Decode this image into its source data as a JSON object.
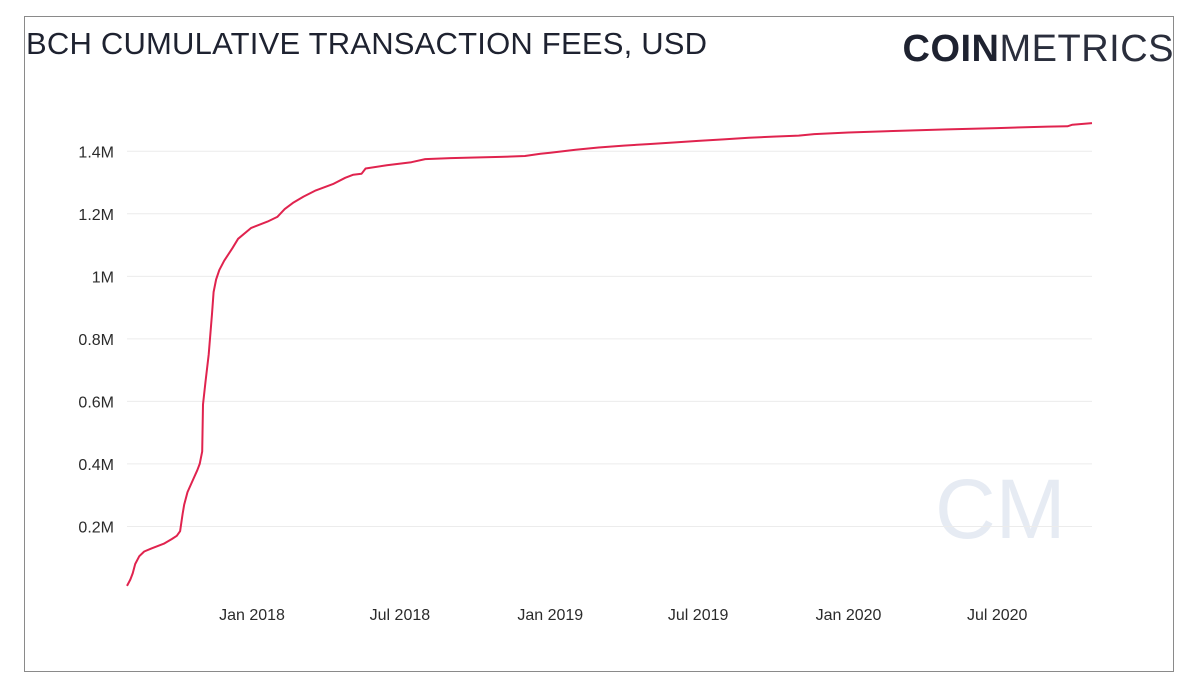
{
  "header": {
    "title": "BCH CUMULATIVE TRANSACTION FEES, USD",
    "brand_bold": "COIN",
    "brand_light": "METRICS"
  },
  "watermark": "CM",
  "colors": {
    "line": "#e0234e",
    "grid": "#ececec",
    "text": "#1e2230"
  },
  "chart_data": {
    "type": "line",
    "title": "BCH CUMULATIVE TRANSACTION FEES, USD",
    "xlabel": "",
    "ylabel": "",
    "xlim": [
      "2017-08-01",
      "2020-10-25"
    ],
    "ylim": [
      0,
      1500000
    ],
    "grid": true,
    "legend": "none",
    "x_ticks": [
      {
        "date": "2018-01-01",
        "label": "Jan 2018"
      },
      {
        "date": "2018-07-01",
        "label": "Jul 2018"
      },
      {
        "date": "2019-01-01",
        "label": "Jan 2019"
      },
      {
        "date": "2019-07-01",
        "label": "Jul 2019"
      },
      {
        "date": "2020-01-01",
        "label": "Jan 2020"
      },
      {
        "date": "2020-07-01",
        "label": "Jul 2020"
      }
    ],
    "y_ticks": [
      {
        "value": 200000,
        "label": "0.2M"
      },
      {
        "value": 400000,
        "label": "0.4M"
      },
      {
        "value": 600000,
        "label": "0.6M"
      },
      {
        "value": 800000,
        "label": "0.8M"
      },
      {
        "value": 1000000,
        "label": "1M"
      },
      {
        "value": 1200000,
        "label": "1.2M"
      },
      {
        "value": 1400000,
        "label": "1.4M"
      }
    ],
    "series": [
      {
        "points": [
          [
            "2017-08-01",
            10000
          ],
          [
            "2017-08-05",
            30000
          ],
          [
            "2017-08-08",
            50000
          ],
          [
            "2017-08-11",
            80000
          ],
          [
            "2017-08-16",
            105000
          ],
          [
            "2017-08-22",
            120000
          ],
          [
            "2017-08-31",
            130000
          ],
          [
            "2017-09-15",
            145000
          ],
          [
            "2017-09-25",
            160000
          ],
          [
            "2017-10-01",
            170000
          ],
          [
            "2017-10-05",
            185000
          ],
          [
            "2017-10-08",
            240000
          ],
          [
            "2017-10-10",
            270000
          ],
          [
            "2017-10-14",
            310000
          ],
          [
            "2017-10-20",
            345000
          ],
          [
            "2017-10-26",
            380000
          ],
          [
            "2017-10-29",
            400000
          ],
          [
            "2017-11-01",
            440000
          ],
          [
            "2017-11-02",
            590000
          ],
          [
            "2017-11-05",
            660000
          ],
          [
            "2017-11-09",
            750000
          ],
          [
            "2017-11-13",
            880000
          ],
          [
            "2017-11-15",
            950000
          ],
          [
            "2017-11-18",
            990000
          ],
          [
            "2017-11-22",
            1020000
          ],
          [
            "2017-11-28",
            1050000
          ],
          [
            "2017-12-08",
            1090000
          ],
          [
            "2017-12-15",
            1120000
          ],
          [
            "2017-12-31",
            1155000
          ],
          [
            "2018-01-20",
            1175000
          ],
          [
            "2018-02-01",
            1190000
          ],
          [
            "2018-02-10",
            1215000
          ],
          [
            "2018-02-20",
            1235000
          ],
          [
            "2018-03-05",
            1255000
          ],
          [
            "2018-03-20",
            1275000
          ],
          [
            "2018-04-10",
            1295000
          ],
          [
            "2018-04-25",
            1315000
          ],
          [
            "2018-05-05",
            1325000
          ],
          [
            "2018-05-15",
            1328000
          ],
          [
            "2018-05-20",
            1345000
          ],
          [
            "2018-06-15",
            1355000
          ],
          [
            "2018-07-15",
            1365000
          ],
          [
            "2018-08-01",
            1375000
          ],
          [
            "2018-09-01",
            1378000
          ],
          [
            "2018-10-01",
            1380000
          ],
          [
            "2018-11-01",
            1382000
          ],
          [
            "2018-12-01",
            1385000
          ],
          [
            "2018-12-20",
            1392000
          ],
          [
            "2019-01-01",
            1395000
          ],
          [
            "2019-02-01",
            1405000
          ],
          [
            "2019-03-01",
            1412000
          ],
          [
            "2019-04-01",
            1418000
          ],
          [
            "2019-05-01",
            1423000
          ],
          [
            "2019-06-01",
            1428000
          ],
          [
            "2019-07-01",
            1433000
          ],
          [
            "2019-08-01",
            1438000
          ],
          [
            "2019-09-01",
            1443000
          ],
          [
            "2019-10-01",
            1447000
          ],
          [
            "2019-11-01",
            1450000
          ],
          [
            "2019-11-20",
            1455000
          ],
          [
            "2020-01-01",
            1460000
          ],
          [
            "2020-03-01",
            1465000
          ],
          [
            "2020-05-01",
            1470000
          ],
          [
            "2020-07-01",
            1474000
          ],
          [
            "2020-09-01",
            1479000
          ],
          [
            "2020-09-25",
            1480000
          ],
          [
            "2020-10-01",
            1485000
          ],
          [
            "2020-10-25",
            1490000
          ]
        ]
      }
    ]
  }
}
